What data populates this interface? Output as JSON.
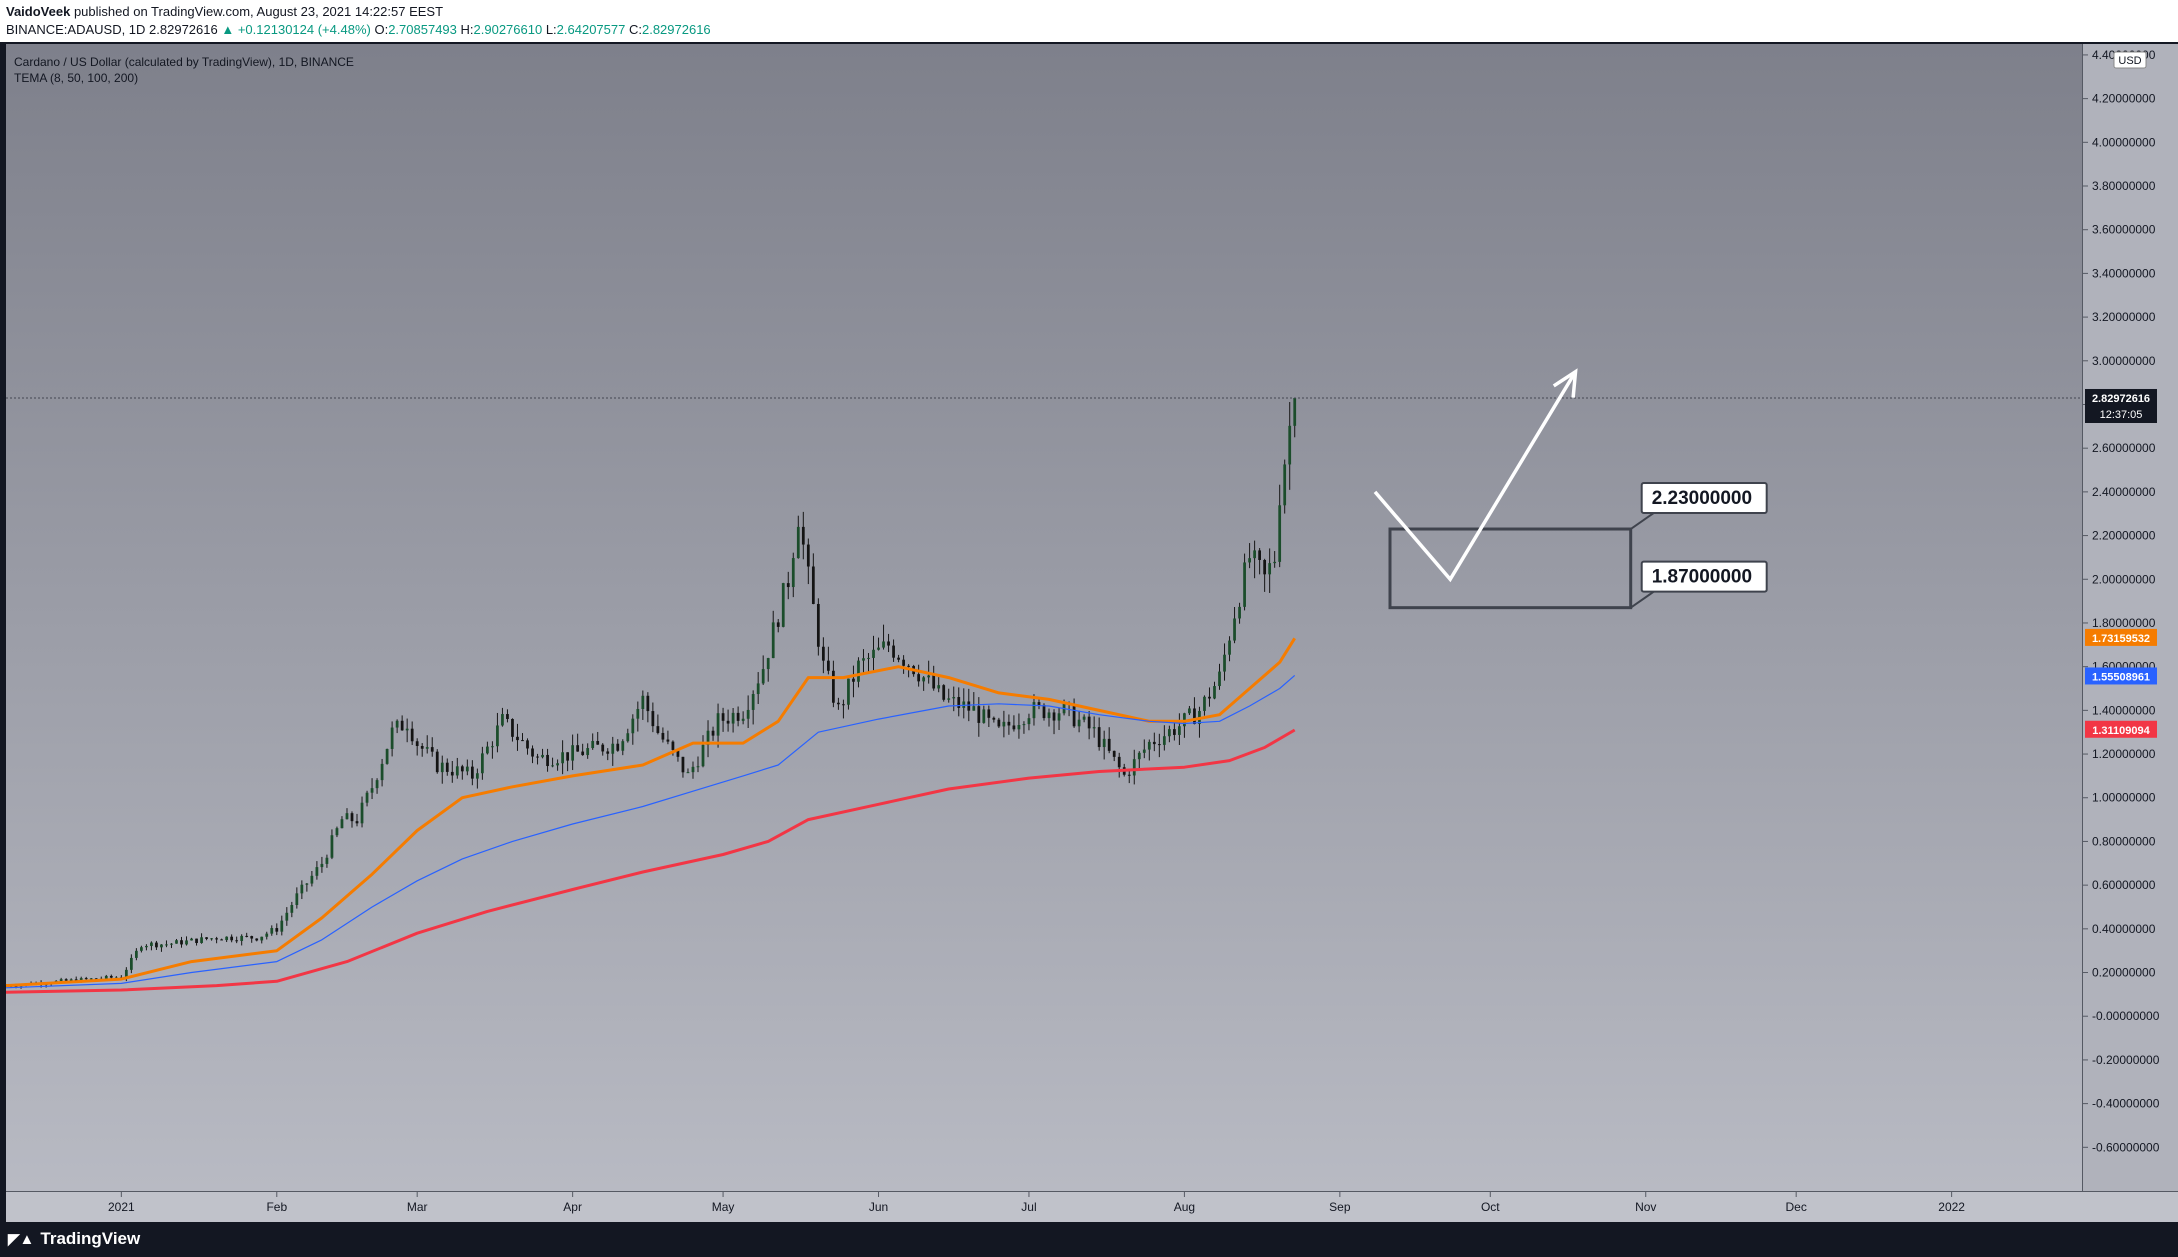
{
  "header": {
    "author": "VaidoVeek",
    "published_text": "published on TradingView.com, August 23, 2021 14:22:57 EEST",
    "symbol_line": "BINANCE:ADAUSD, 1D",
    "last": "2.82972616",
    "change": "▲ +0.12130124 (+4.48%)",
    "o_label": "O:",
    "o": "2.70857493",
    "h_label": "H:",
    "h": "2.90276610",
    "l_label": "L:",
    "l": "2.64207577",
    "c_label": "C:",
    "c": "2.82972616"
  },
  "legend": {
    "title": "Cardano / US Dollar (calculated by TradingView), 1D, BINANCE",
    "indicator": "TEMA (8, 50, 100, 200)"
  },
  "footer": {
    "brand": "TradingView",
    "brand_icon": "tradingview-logo-icon"
  },
  "colors": {
    "up": "#089981",
    "tema50": "#f57c00",
    "tema100": "#2962ff",
    "tema200": "#f23645"
  },
  "chart_data": {
    "type": "candlestick",
    "y_axis": {
      "range": [
        -0.8,
        4.45
      ],
      "tick_labels": [
        "4.40000000",
        "4.20000000",
        "4.00000000",
        "3.80000000",
        "3.60000000",
        "3.40000000",
        "3.20000000",
        "3.00000000",
        "2.80000000",
        "2.60000000",
        "2.40000000",
        "2.20000000",
        "2.00000000",
        "1.80000000",
        "1.60000000",
        "1.40000000",
        "1.20000000",
        "1.00000000",
        "0.80000000",
        "0.60000000",
        "0.40000000",
        "0.20000000",
        "-0.00000000",
        "-0.20000000",
        "-0.40000000",
        "-0.60000000"
      ],
      "currency": "USD"
    },
    "x_axis": {
      "range": [
        "2020-12-09",
        "2022-01-27"
      ],
      "ticks": [
        {
          "date": "2021-01-01",
          "label": "2021"
        },
        {
          "date": "2021-02-01",
          "label": "Feb"
        },
        {
          "date": "2021-03-01",
          "label": "Mar"
        },
        {
          "date": "2021-04-01",
          "label": "Apr"
        },
        {
          "date": "2021-05-01",
          "label": "May"
        },
        {
          "date": "2021-06-01",
          "label": "Jun"
        },
        {
          "date": "2021-07-01",
          "label": "Jul"
        },
        {
          "date": "2021-08-01",
          "label": "Aug"
        },
        {
          "date": "2021-09-01",
          "label": "Sep"
        },
        {
          "date": "2021-10-01",
          "label": "Oct"
        },
        {
          "date": "2021-11-01",
          "label": "Nov"
        },
        {
          "date": "2021-12-01",
          "label": "Dec"
        },
        {
          "date": "2022-01-01",
          "label": "2022"
        }
      ]
    },
    "price_points": [
      [
        "2020-12-09",
        0.14
      ],
      [
        "2020-12-20",
        0.16
      ],
      [
        "2021-01-01",
        0.18
      ],
      [
        "2021-01-05",
        0.33
      ],
      [
        "2021-01-10",
        0.33
      ],
      [
        "2021-01-20",
        0.36
      ],
      [
        "2021-01-28",
        0.36
      ],
      [
        "2021-02-01",
        0.4
      ],
      [
        "2021-02-05",
        0.55
      ],
      [
        "2021-02-10",
        0.7
      ],
      [
        "2021-02-14",
        0.9
      ],
      [
        "2021-02-17",
        0.9
      ],
      [
        "2021-02-20",
        1.05
      ],
      [
        "2021-02-24",
        1.3
      ],
      [
        "2021-02-27",
        1.35
      ],
      [
        "2021-03-01",
        1.25
      ],
      [
        "2021-03-05",
        1.15
      ],
      [
        "2021-03-12",
        1.1
      ],
      [
        "2021-03-18",
        1.35
      ],
      [
        "2021-03-25",
        1.18
      ],
      [
        "2021-04-01",
        1.2
      ],
      [
        "2021-04-10",
        1.25
      ],
      [
        "2021-04-15",
        1.45
      ],
      [
        "2021-04-18",
        1.3
      ],
      [
        "2021-04-24",
        1.1
      ],
      [
        "2021-04-30",
        1.35
      ],
      [
        "2021-05-05",
        1.4
      ],
      [
        "2021-05-09",
        1.6
      ],
      [
        "2021-05-14",
        2.0
      ],
      [
        "2021-05-16",
        2.3
      ],
      [
        "2021-05-18",
        2.0
      ],
      [
        "2021-05-21",
        1.6
      ],
      [
        "2021-05-24",
        1.4
      ],
      [
        "2021-05-28",
        1.6
      ],
      [
        "2021-06-03",
        1.7
      ],
      [
        "2021-06-08",
        1.6
      ],
      [
        "2021-06-14",
        1.45
      ],
      [
        "2021-06-20",
        1.4
      ],
      [
        "2021-06-25",
        1.3
      ],
      [
        "2021-07-01",
        1.4
      ],
      [
        "2021-07-08",
        1.4
      ],
      [
        "2021-07-14",
        1.3
      ],
      [
        "2021-07-20",
        1.1
      ],
      [
        "2021-07-25",
        1.25
      ],
      [
        "2021-07-31",
        1.33
      ],
      [
        "2021-08-04",
        1.4
      ],
      [
        "2021-08-08",
        1.55
      ],
      [
        "2021-08-11",
        1.85
      ],
      [
        "2021-08-14",
        2.1
      ],
      [
        "2021-08-17",
        2.0
      ],
      [
        "2021-08-19",
        2.1
      ],
      [
        "2021-08-20",
        2.4
      ],
      [
        "2021-08-22",
        2.7
      ],
      [
        "2021-08-23",
        2.83
      ]
    ],
    "last_date": "2021-08-23",
    "last_price": 2.82972616,
    "countdown": "12:37:05",
    "series": [
      {
        "name": "TEMA 50",
        "color": "#f57c00",
        "last": "1.73159532",
        "points": [
          [
            "2020-12-09",
            0.14
          ],
          [
            "2021-01-01",
            0.17
          ],
          [
            "2021-01-15",
            0.25
          ],
          [
            "2021-02-01",
            0.3
          ],
          [
            "2021-02-10",
            0.45
          ],
          [
            "2021-02-20",
            0.65
          ],
          [
            "2021-03-01",
            0.85
          ],
          [
            "2021-03-10",
            1.0
          ],
          [
            "2021-03-20",
            1.05
          ],
          [
            "2021-04-01",
            1.1
          ],
          [
            "2021-04-15",
            1.15
          ],
          [
            "2021-04-25",
            1.25
          ],
          [
            "2021-05-05",
            1.25
          ],
          [
            "2021-05-12",
            1.35
          ],
          [
            "2021-05-18",
            1.55
          ],
          [
            "2021-05-25",
            1.55
          ],
          [
            "2021-06-05",
            1.6
          ],
          [
            "2021-06-15",
            1.55
          ],
          [
            "2021-06-25",
            1.48
          ],
          [
            "2021-07-05",
            1.45
          ],
          [
            "2021-07-15",
            1.4
          ],
          [
            "2021-07-25",
            1.35
          ],
          [
            "2021-08-01",
            1.35
          ],
          [
            "2021-08-08",
            1.38
          ],
          [
            "2021-08-14",
            1.5
          ],
          [
            "2021-08-20",
            1.62
          ],
          [
            "2021-08-23",
            1.73
          ]
        ]
      },
      {
        "name": "TEMA 100",
        "color": "#2962ff",
        "last": "1.55508961",
        "points": [
          [
            "2020-12-09",
            0.13
          ],
          [
            "2021-01-01",
            0.15
          ],
          [
            "2021-01-15",
            0.2
          ],
          [
            "2021-02-01",
            0.25
          ],
          [
            "2021-02-10",
            0.35
          ],
          [
            "2021-02-20",
            0.5
          ],
          [
            "2021-03-01",
            0.62
          ],
          [
            "2021-03-10",
            0.72
          ],
          [
            "2021-03-20",
            0.8
          ],
          [
            "2021-04-01",
            0.88
          ],
          [
            "2021-04-15",
            0.96
          ],
          [
            "2021-04-25",
            1.03
          ],
          [
            "2021-05-05",
            1.1
          ],
          [
            "2021-05-12",
            1.15
          ],
          [
            "2021-05-20",
            1.3
          ],
          [
            "2021-06-01",
            1.36
          ],
          [
            "2021-06-15",
            1.42
          ],
          [
            "2021-06-25",
            1.43
          ],
          [
            "2021-07-05",
            1.42
          ],
          [
            "2021-07-15",
            1.38
          ],
          [
            "2021-07-25",
            1.35
          ],
          [
            "2021-08-01",
            1.34
          ],
          [
            "2021-08-08",
            1.35
          ],
          [
            "2021-08-14",
            1.42
          ],
          [
            "2021-08-20",
            1.5
          ],
          [
            "2021-08-23",
            1.56
          ]
        ]
      },
      {
        "name": "TEMA 200",
        "color": "#f23645",
        "last": "1.31109094",
        "points": [
          [
            "2020-12-09",
            0.11
          ],
          [
            "2021-01-01",
            0.12
          ],
          [
            "2021-01-20",
            0.14
          ],
          [
            "2021-02-01",
            0.16
          ],
          [
            "2021-02-15",
            0.25
          ],
          [
            "2021-03-01",
            0.38
          ],
          [
            "2021-03-15",
            0.48
          ],
          [
            "2021-04-01",
            0.58
          ],
          [
            "2021-04-15",
            0.66
          ],
          [
            "2021-05-01",
            0.74
          ],
          [
            "2021-05-10",
            0.8
          ],
          [
            "2021-05-18",
            0.9
          ],
          [
            "2021-06-01",
            0.97
          ],
          [
            "2021-06-15",
            1.04
          ],
          [
            "2021-07-01",
            1.09
          ],
          [
            "2021-07-15",
            1.12
          ],
          [
            "2021-08-01",
            1.14
          ],
          [
            "2021-08-10",
            1.17
          ],
          [
            "2021-08-17",
            1.23
          ],
          [
            "2021-08-23",
            1.31
          ]
        ]
      }
    ],
    "annotations": {
      "zone": {
        "from_date": "2021-09-11",
        "to_date": "2021-10-29",
        "top": 2.23,
        "bottom": 1.87,
        "top_label": "2.23000000",
        "bottom_label": "1.87000000"
      },
      "path": [
        [
          "2021-09-08",
          2.4
        ],
        [
          "2021-09-23",
          2.0
        ],
        [
          "2021-10-18",
          2.95
        ]
      ]
    }
  }
}
